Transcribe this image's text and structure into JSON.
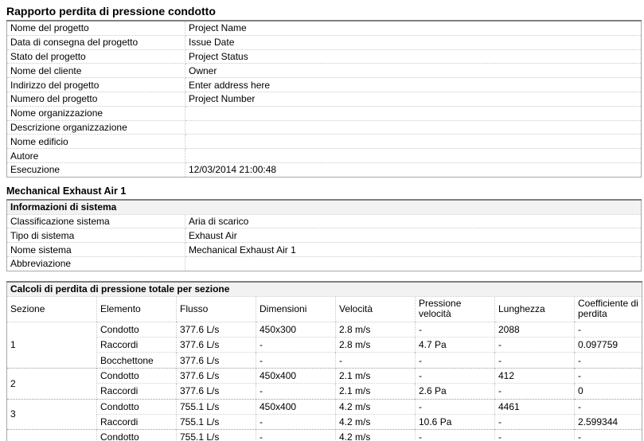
{
  "theme": {
    "header_row_bg": "#f2f2f2",
    "outer_border": "#808080",
    "dotted_grid": "#c9c9c9",
    "text": "#000000"
  },
  "report": {
    "title": "Rapporto perdita di pressione condotto",
    "project_info": {
      "rows": [
        {
          "label": "Nome del progetto",
          "value": "Project Name"
        },
        {
          "label": "Data di consegna del progetto",
          "value": "Issue Date"
        },
        {
          "label": "Stato del progetto",
          "value": "Project Status"
        },
        {
          "label": "Nome del cliente",
          "value": "Owner"
        },
        {
          "label": "Indirizzo del progetto",
          "value": "Enter address here"
        },
        {
          "label": "Numero del progetto",
          "value": "Project Number"
        },
        {
          "label": "Nome organizzazione",
          "value": ""
        },
        {
          "label": "Descrizione organizzazione",
          "value": ""
        },
        {
          "label": "Nome edificio",
          "value": ""
        },
        {
          "label": "Autore",
          "value": ""
        },
        {
          "label": "Esecuzione",
          "value": "12/03/2014 21:00:48"
        }
      ]
    },
    "system": {
      "heading": "Mechanical Exhaust Air 1",
      "info_header": "Informazioni di sistema",
      "rows": [
        {
          "label": "Classificazione sistema",
          "value": "Aria di scarico"
        },
        {
          "label": "Tipo di sistema",
          "value": "Exhaust Air"
        },
        {
          "label": "Nome sistema",
          "value": "Mechanical Exhaust Air 1"
        },
        {
          "label": "Abbreviazione",
          "value": ""
        }
      ]
    },
    "calc_table": {
      "header": "Calcoli di perdita di pressione totale per sezione",
      "columns": [
        "Sezione",
        "Elemento",
        "Flusso",
        "Dimensioni",
        "Velocità",
        "Pressione velocità",
        "Lunghezza",
        "Coefficiente di perdita"
      ],
      "sections": [
        {
          "id": "1",
          "rows": [
            [
              "Condotto",
              "377.6 L/s",
              "450x300",
              "2.8 m/s",
              "-",
              "2088",
              "-"
            ],
            [
              "Raccordi",
              "377.6 L/s",
              "-",
              "2.8 m/s",
              "4.7 Pa",
              "-",
              "0.097759"
            ],
            [
              "Bocchettone",
              "377.6 L/s",
              "-",
              "-",
              "-",
              "-",
              "-"
            ]
          ]
        },
        {
          "id": "2",
          "rows": [
            [
              "Condotto",
              "377.6 L/s",
              "450x400",
              "2.1 m/s",
              "-",
              "412",
              "-"
            ],
            [
              "Raccordi",
              "377.6 L/s",
              "-",
              "2.1 m/s",
              "2.6 Pa",
              "-",
              "0"
            ]
          ]
        },
        {
          "id": "3",
          "rows": [
            [
              "Condotto",
              "755.1 L/s",
              "450x400",
              "4.2 m/s",
              "-",
              "4461",
              "-"
            ],
            [
              "Raccordi",
              "755.1 L/s",
              "-",
              "4.2 m/s",
              "10.6 Pa",
              "-",
              "2.599344"
            ]
          ]
        },
        {
          "id": "",
          "clipped": true,
          "rows": [
            [
              "Condotto",
              "755.1 L/s",
              "-",
              "4.2 m/s",
              "-",
              "-",
              "-"
            ]
          ]
        }
      ]
    }
  }
}
